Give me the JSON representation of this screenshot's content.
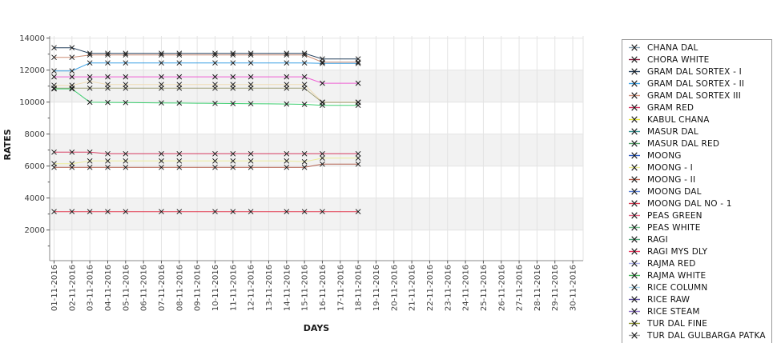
{
  "figure": {
    "background": "#ffffff",
    "band_color": "#f2f2f2",
    "grid_color": "#e3e3e3",
    "spine_color": "#8a8a8a",
    "tick_color": "#555555",
    "tick_label_color": "#3d3d3d",
    "axis_title_color": "#1a1a1a",
    "marker_color": "#1a1a1a"
  },
  "chart_data": {
    "type": "line",
    "title": "",
    "xlabel": "DAYS",
    "ylabel": "RATES",
    "grid": true,
    "legend_position": "right",
    "ylim": [
      0,
      14150
    ],
    "y_ticks": [
      2000,
      4000,
      6000,
      8000,
      10000,
      12000,
      14000
    ],
    "x_tick_labels": [
      "01-11-2016",
      "02-11-2016",
      "03-11-2016",
      "04-11-2016",
      "05-11-2016",
      "06-11-2016",
      "07-11-2016",
      "08-11-2016",
      "09-11-2016",
      "10-11-2016",
      "11-11-2016",
      "12-11-2016",
      "13-11-2016",
      "14-11-2016",
      "15-11-2016",
      "16-11-2016",
      "17-11-2016",
      "18-11-2016",
      "19-11-2016",
      "20-11-2016",
      "21-11-2016",
      "22-11-2016",
      "23-11-2016",
      "24-11-2016",
      "25-11-2016",
      "26-11-2016",
      "27-11-2016",
      "28-11-2016",
      "29-11-2016",
      "30-11-2016"
    ],
    "data_days": [
      1,
      2,
      3,
      4,
      5,
      6,
      7,
      8,
      9,
      10,
      11,
      12,
      13,
      14,
      15,
      16,
      17,
      18
    ],
    "marker_days": [
      1,
      2,
      3,
      4,
      5,
      7,
      8,
      10,
      11,
      12,
      14,
      15,
      16,
      18
    ],
    "series": [
      {
        "name": "navy",
        "color": "#26415d",
        "values": [
          13400,
          13400,
          13050,
          13050,
          13050,
          13050,
          13050,
          13050,
          13050,
          13050,
          13050,
          13050,
          13050,
          13050,
          13050,
          12700,
          12700,
          12700
        ]
      },
      {
        "name": "tan",
        "color": "#cc8e75",
        "values": [
          12800,
          12800,
          12950,
          12950,
          12950,
          12950,
          12950,
          12950,
          12950,
          12950,
          12950,
          12950,
          12950,
          12950,
          12950,
          12500,
          12500,
          12500
        ]
      },
      {
        "name": "light-blue",
        "color": "#3aa0e4",
        "values": [
          11950,
          11950,
          12450,
          12450,
          12450,
          12450,
          12450,
          12450,
          12450,
          12450,
          12450,
          12450,
          12450,
          12450,
          12450,
          12420,
          12420,
          12420
        ]
      },
      {
        "name": "magenta",
        "color": "#ef5fd4",
        "values": [
          11580,
          11580,
          11580,
          11580,
          11580,
          11580,
          11580,
          11580,
          11580,
          11580,
          11580,
          11580,
          11580,
          11580,
          11580,
          11180,
          11180,
          11180
        ]
      },
      {
        "name": "wheat",
        "color": "#f0dcb4",
        "values": [
          11050,
          11050,
          11300,
          11100,
          11100,
          11100,
          11100,
          11100,
          11100,
          11100,
          11100,
          11100,
          11100,
          11100,
          11100,
          10000,
          10000,
          10000
        ]
      },
      {
        "name": "khaki-gray",
        "color": "#9f9f78",
        "values": [
          10870,
          10870,
          10870,
          10870,
          10870,
          10870,
          10870,
          10870,
          10870,
          10870,
          10870,
          10870,
          10870,
          10870,
          10870,
          9980,
          9980,
          9980
        ]
      },
      {
        "name": "green",
        "color": "#3bcd6e",
        "values": [
          10830,
          10830,
          9990,
          9980,
          9970,
          9960,
          9950,
          9940,
          9930,
          9920,
          9910,
          9900,
          9890,
          9880,
          9860,
          9800,
          9800,
          9800
        ]
      },
      {
        "name": "crimson",
        "color": "#d63a60",
        "values": [
          6870,
          6870,
          6870,
          6770,
          6770,
          6770,
          6770,
          6770,
          6770,
          6770,
          6770,
          6770,
          6770,
          6770,
          6770,
          6770,
          6770,
          6770
        ]
      },
      {
        "name": "pale-yellow",
        "color": "#ecec9c",
        "values": [
          6150,
          6150,
          6320,
          6320,
          6320,
          6320,
          6320,
          6320,
          6320,
          6320,
          6320,
          6320,
          6320,
          6320,
          6270,
          6500,
          6500,
          6500
        ]
      },
      {
        "name": "brown-red",
        "color": "#b2604e",
        "values": [
          5920,
          5920,
          5920,
          5920,
          5920,
          5920,
          5920,
          5920,
          5920,
          5920,
          5920,
          5920,
          5920,
          5920,
          5920,
          6120,
          6120,
          6120
        ]
      },
      {
        "name": "red",
        "color": "#e23c52",
        "values": [
          3150,
          3150,
          3150,
          3150,
          3150,
          3150,
          3150,
          3150,
          3150,
          3150,
          3150,
          3150,
          3150,
          3150,
          3150,
          3150,
          3150,
          3150
        ]
      }
    ]
  },
  "legend": {
    "items": [
      {
        "label": "CHANA DAL",
        "color": "#8ca5b5"
      },
      {
        "label": "CHORA WHITE",
        "color": "#8e2344"
      },
      {
        "label": "GRAM DAL SORTEX  - I",
        "color": "#27425e"
      },
      {
        "label": "GRAM DAL SORTEX - II",
        "color": "#3aa0e4"
      },
      {
        "label": "GRAM DAL SORTEX III",
        "color": "#cf9179"
      },
      {
        "label": "GRAM RED",
        "color": "#d63864"
      },
      {
        "label": "KABUL CHANA",
        "color": "#e3e33c"
      },
      {
        "label": "MASUR DAL",
        "color": "#3a9393"
      },
      {
        "label": "MASUR DAL RED",
        "color": "#55a06a"
      },
      {
        "label": "MOONG",
        "color": "#2d5fc4"
      },
      {
        "label": "MOONG - I",
        "color": "#ecec9a"
      },
      {
        "label": "MOONG - II",
        "color": "#bc6653"
      },
      {
        "label": "MOONG DAL",
        "color": "#5b7fd4"
      },
      {
        "label": "MOONG DAL NO - 1",
        "color": "#d63850"
      },
      {
        "label": "PEAS GREEN",
        "color": "#e06380"
      },
      {
        "label": "PEAS WHITE",
        "color": "#72bd8a"
      },
      {
        "label": "RAGI",
        "color": "#4d9e73"
      },
      {
        "label": "RAGI MYS DLY",
        "color": "#e8335a"
      },
      {
        "label": "RAJMA RED",
        "color": "#a8aee8"
      },
      {
        "label": "RAJMA WHITE",
        "color": "#3eb054"
      },
      {
        "label": "RICE COLUMN",
        "color": "#a8d3e8"
      },
      {
        "label": "RICE RAW",
        "color": "#5b4a9e"
      },
      {
        "label": "RICE STEAM",
        "color": "#8a6fc0"
      },
      {
        "label": "TUR DAL FINE",
        "color": "#8f9430"
      },
      {
        "label": "TUR DAL GULBARGA PATKA",
        "color": "#9e9e9e"
      }
    ]
  }
}
